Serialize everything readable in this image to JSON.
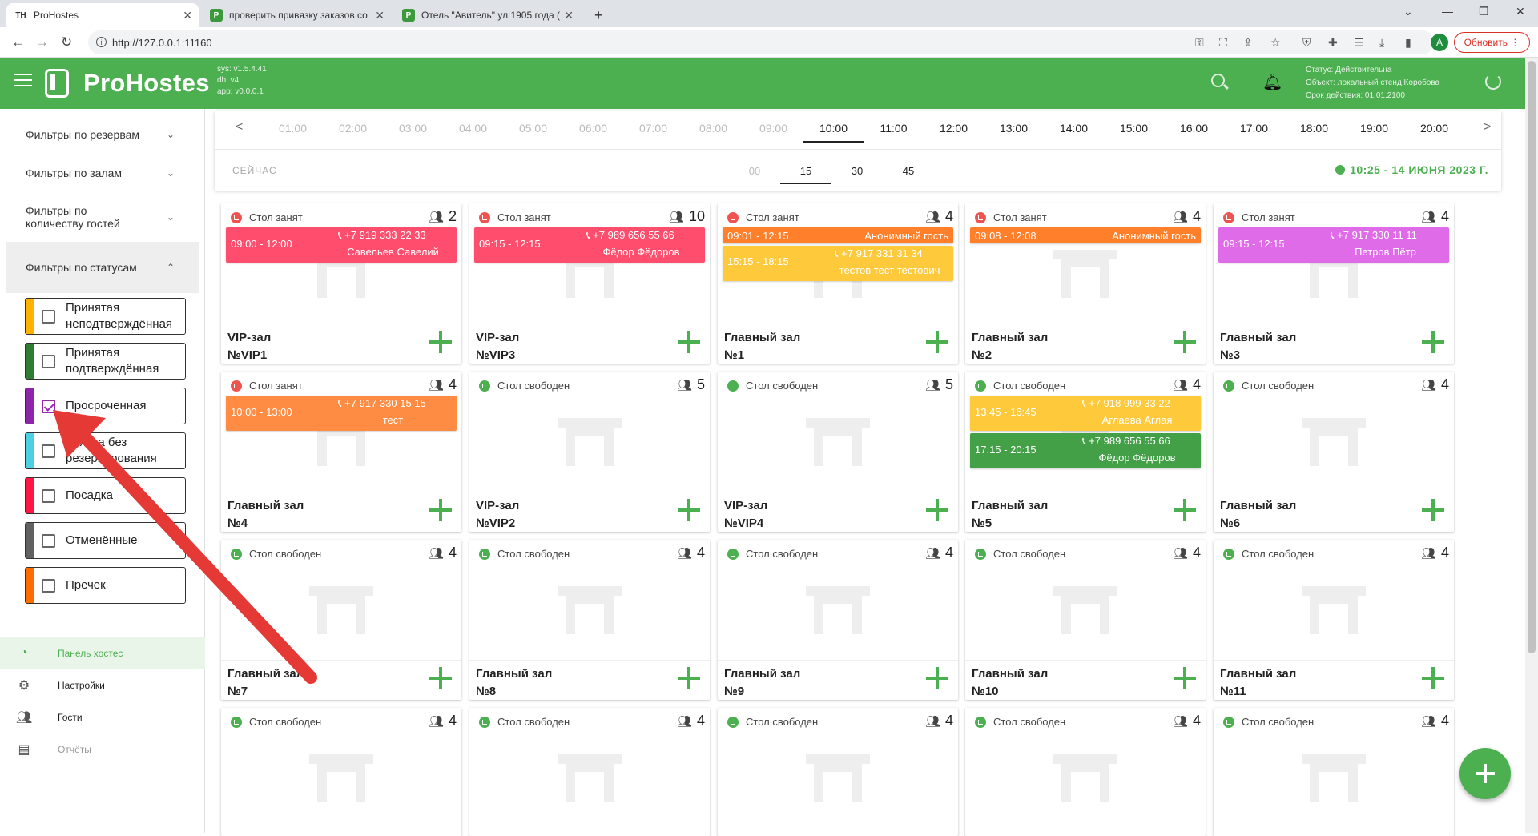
{
  "browser": {
    "tabs": [
      {
        "title": "ProHostes",
        "icon": "TH"
      },
      {
        "title": "проверить привязку заказов со",
        "icon": "P"
      },
      {
        "title": "Отель \"Авитель\" ул 1905 года (",
        "icon": "P"
      }
    ],
    "url": "http://127.0.0.1:11160",
    "profile_initial": "A",
    "update_label": "Обновить"
  },
  "header": {
    "brand": "ProHostes",
    "version_lines": [
      "sys: v1.5.4.41",
      "db: v4",
      "app: v0.0.0.1"
    ],
    "status_lines": [
      "Статус: Действительна",
      "Объект: локальный стенд Коробова",
      "Срок действия: 01.01.2100"
    ]
  },
  "sidebar": {
    "filter_groups": [
      {
        "label": "Фильтры по резервам"
      },
      {
        "label": "Фильтры по залам"
      },
      {
        "label": "Фильтры по количеству гостей"
      },
      {
        "label": "Фильтры по статусам"
      }
    ],
    "status_filters": [
      {
        "label": "Принятая неподтверждённая",
        "color": "#ffb300",
        "checked": false
      },
      {
        "label": "Принятая подтверждённая",
        "color": "#2e7d32",
        "checked": false
      },
      {
        "label": "Просроченная",
        "color": "#8e24aa",
        "checked": true
      },
      {
        "label": "Заявка без резервирования",
        "color": "#4dd0e1",
        "checked": false
      },
      {
        "label": "Посадка",
        "color": "#ff1744",
        "checked": false
      },
      {
        "label": "Отменённые",
        "color": "#616161",
        "checked": false
      },
      {
        "label": "Пречек",
        "color": "#ff6d00",
        "checked": false
      }
    ],
    "nav": [
      {
        "label": "Панель хостес",
        "icon": "clock-icon"
      },
      {
        "label": "Настройки",
        "icon": "gear-icon"
      },
      {
        "label": "Гости",
        "icon": "people-icon"
      },
      {
        "label": "Отчёты",
        "icon": "report-icon"
      }
    ]
  },
  "timebar": {
    "hours": [
      "01:00",
      "02:00",
      "03:00",
      "04:00",
      "05:00",
      "06:00",
      "07:00",
      "08:00",
      "09:00",
      "10:00",
      "11:00",
      "12:00",
      "13:00",
      "14:00",
      "15:00",
      "16:00",
      "17:00",
      "18:00",
      "19:00",
      "20:00"
    ],
    "current_hour": "10:00",
    "now_label": "СЕЙЧАС",
    "minutes": [
      "00",
      "15",
      "30",
      "45"
    ],
    "current_minute": "15",
    "clock": "10:25 - 14 ИЮНЯ 2023 Г."
  },
  "tables": [
    {
      "status": "Стол занят",
      "busy": true,
      "seats": "2",
      "hall": "VIP-зал",
      "number": "№VIP1",
      "reservations": [
        {
          "time": "09:00 - 12:00",
          "phone": "+7 919 333 22 33",
          "name": "Савельев Савелий",
          "color": "#ff4d6d",
          "layout": "two"
        }
      ]
    },
    {
      "status": "Стол занят",
      "busy": true,
      "seats": "10",
      "hall": "VIP-зал",
      "number": "№VIP3",
      "reservations": [
        {
          "time": "09:15 - 12:15",
          "phone": "+7 989 656 55 66",
          "name": "Фёдор Фёдоров",
          "color": "#ff4d6d",
          "layout": "two"
        }
      ]
    },
    {
      "status": "Стол занят",
      "busy": true,
      "seats": "4",
      "hall": "Главный зал",
      "number": "№1",
      "reservations": [
        {
          "time": "09:01 - 12:15",
          "phone": "",
          "name": "Анонимный гость",
          "color": "#ff7f2a",
          "layout": "one"
        },
        {
          "time": "15:15 - 18:15",
          "phone": "+7 917 331 31 34",
          "name": "тестов тест тестович",
          "color": "#ffc93c",
          "layout": "two"
        }
      ]
    },
    {
      "status": "Стол занят",
      "busy": true,
      "seats": "4",
      "hall": "Главный зал",
      "number": "№2",
      "reservations": [
        {
          "time": "09:08 - 12:08",
          "phone": "",
          "name": "Анонимный гость",
          "color": "#ff7f2a",
          "layout": "one"
        }
      ]
    },
    {
      "status": "Стол занят",
      "busy": true,
      "seats": "4",
      "hall": "Главный зал",
      "number": "№3",
      "reservations": [
        {
          "time": "09:15 - 12:15",
          "phone": "+7 917 330 11 11",
          "name": "Петров Пётр",
          "color": "#e06be8",
          "layout": "two"
        }
      ]
    },
    {
      "status": "Стол занят",
      "busy": true,
      "seats": "4",
      "hall": "Главный зал",
      "number": "№4",
      "reservations": [
        {
          "time": "10:00 - 13:00",
          "phone": "+7 917 330 15 15",
          "name": "тест",
          "color": "#ff8c42",
          "layout": "two"
        }
      ]
    },
    {
      "status": "Стол свободен",
      "busy": false,
      "seats": "5",
      "hall": "VIP-зал",
      "number": "№VIP2",
      "reservations": []
    },
    {
      "status": "Стол свободен",
      "busy": false,
      "seats": "5",
      "hall": "VIP-зал",
      "number": "№VIP4",
      "reservations": []
    },
    {
      "status": "Стол свободен",
      "busy": false,
      "seats": "4",
      "hall": "Главный зал",
      "number": "№5",
      "reservations": [
        {
          "time": "13:45 - 16:45",
          "phone": "+7 918 999 33 22",
          "name": "Аглаева Аглая",
          "color": "#ffc93c",
          "layout": "two"
        },
        {
          "time": "17:15 - 20:15",
          "phone": "+7 989 656 55 66",
          "name": "Фёдор Фёдоров",
          "color": "#43a047",
          "layout": "two"
        }
      ]
    },
    {
      "status": "Стол свободен",
      "busy": false,
      "seats": "4",
      "hall": "Главный зал",
      "number": "№6",
      "reservations": []
    },
    {
      "status": "Стол свободен",
      "busy": false,
      "seats": "4",
      "hall": "Главный зал",
      "number": "№7",
      "reservations": []
    },
    {
      "status": "Стол свободен",
      "busy": false,
      "seats": "4",
      "hall": "Главный зал",
      "number": "№8",
      "reservations": []
    },
    {
      "status": "Стол свободен",
      "busy": false,
      "seats": "4",
      "hall": "Главный зал",
      "number": "№9",
      "reservations": []
    },
    {
      "status": "Стол свободен",
      "busy": false,
      "seats": "4",
      "hall": "Главный зал",
      "number": "№10",
      "reservations": []
    },
    {
      "status": "Стол свободен",
      "busy": false,
      "seats": "4",
      "hall": "Главный зал",
      "number": "№11",
      "reservations": []
    },
    {
      "status": "Стол свободен",
      "busy": false,
      "seats": "4",
      "hall": "",
      "number": "",
      "reservations": []
    },
    {
      "status": "Стол свободен",
      "busy": false,
      "seats": "4",
      "hall": "",
      "number": "",
      "reservations": []
    },
    {
      "status": "Стол свободен",
      "busy": false,
      "seats": "4",
      "hall": "",
      "number": "",
      "reservations": []
    },
    {
      "status": "Стол свободен",
      "busy": false,
      "seats": "4",
      "hall": "",
      "number": "",
      "reservations": []
    },
    {
      "status": "Стол свободен",
      "busy": false,
      "seats": "4",
      "hall": "",
      "number": "",
      "reservations": []
    }
  ],
  "annotation_color": "#e53935"
}
